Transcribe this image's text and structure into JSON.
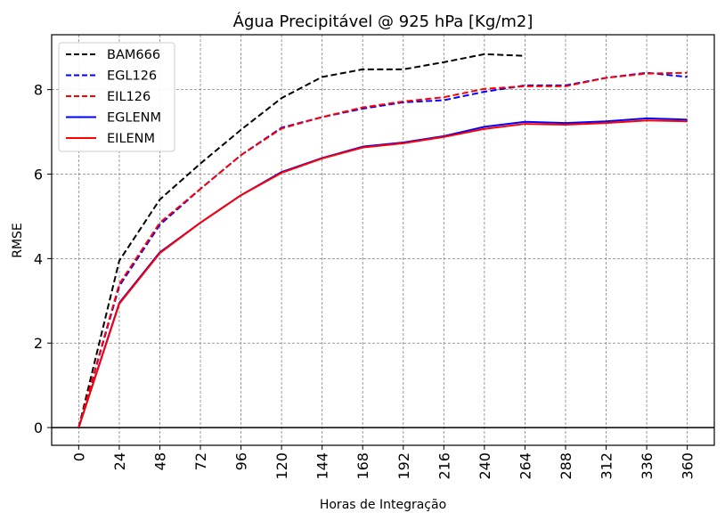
{
  "chart_data": {
    "type": "line",
    "title": "Água Precipitável @ 925 hPa [Kg/m2]",
    "xlabel": "Horas de Integração",
    "ylabel": "RMSE",
    "x": [
      0,
      24,
      48,
      72,
      96,
      120,
      144,
      168,
      192,
      216,
      240,
      264,
      288,
      312,
      336,
      360
    ],
    "x_tick_labels": [
      "0",
      "24",
      "48",
      "72",
      "96",
      "120",
      "144",
      "168",
      "192",
      "216",
      "240",
      "264",
      "288",
      "312",
      "336",
      "360"
    ],
    "xlim": [
      -16,
      376
    ],
    "ylim": [
      -0.42,
      9.3
    ],
    "y_ticks": [
      0,
      2,
      4,
      6,
      8
    ],
    "y_tick_labels": [
      "0",
      "2",
      "4",
      "6",
      "8"
    ],
    "grid": true,
    "zero_line": true,
    "legend_position": "top-left",
    "series": [
      {
        "name": "BAM666",
        "color": "#000000",
        "style": "dashed",
        "x": [
          0,
          24,
          48,
          72,
          96,
          120,
          144,
          168,
          192,
          216,
          240,
          264
        ],
        "values": [
          0,
          3.95,
          5.4,
          6.25,
          7.05,
          7.8,
          8.3,
          8.48,
          8.48,
          8.65,
          8.84,
          8.8
        ]
      },
      {
        "name": "EGL126",
        "color": "#0000ff",
        "style": "dashed",
        "x": [
          0,
          24,
          48,
          72,
          96,
          120,
          144,
          168,
          192,
          216,
          240,
          264,
          288,
          312,
          336,
          360
        ],
        "values": [
          0,
          3.35,
          4.8,
          5.65,
          6.45,
          7.1,
          7.35,
          7.55,
          7.7,
          7.75,
          7.95,
          8.1,
          8.1,
          8.28,
          8.4,
          8.3
        ]
      },
      {
        "name": "EIL126",
        "color": "#ff0000",
        "style": "dashed",
        "x": [
          0,
          24,
          48,
          72,
          96,
          120,
          144,
          168,
          192,
          216,
          240,
          264,
          288,
          312,
          336,
          360
        ],
        "values": [
          0,
          3.4,
          4.85,
          5.65,
          6.45,
          7.08,
          7.35,
          7.58,
          7.72,
          7.82,
          8.02,
          8.08,
          8.08,
          8.28,
          8.38,
          8.4
        ]
      },
      {
        "name": "EGLENM",
        "color": "#0000ff",
        "style": "solid",
        "x": [
          0,
          24,
          48,
          72,
          96,
          120,
          144,
          168,
          192,
          216,
          240,
          264,
          288,
          312,
          336,
          360
        ],
        "values": [
          0,
          2.95,
          4.15,
          4.85,
          5.5,
          6.05,
          6.38,
          6.65,
          6.75,
          6.9,
          7.12,
          7.24,
          7.21,
          7.25,
          7.32,
          7.29
        ]
      },
      {
        "name": "EILENM",
        "color": "#ff0000",
        "style": "solid",
        "x": [
          0,
          24,
          48,
          72,
          96,
          120,
          144,
          168,
          192,
          216,
          240,
          264,
          288,
          312,
          336,
          360
        ],
        "values": [
          0,
          2.93,
          4.13,
          4.85,
          5.5,
          6.03,
          6.37,
          6.63,
          6.73,
          6.88,
          7.07,
          7.19,
          7.17,
          7.21,
          7.27,
          7.25
        ]
      }
    ]
  }
}
